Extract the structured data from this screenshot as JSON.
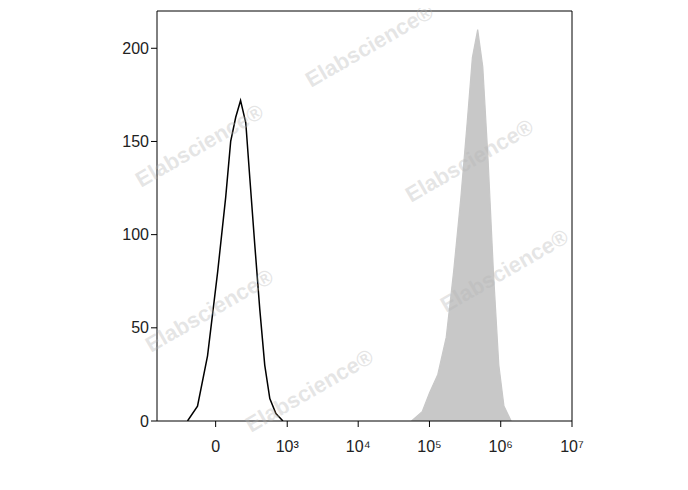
{
  "chart_data": {
    "type": "area",
    "log": "x",
    "watermark": "Elabscience®",
    "xlim": [
      -650,
      10000000
    ],
    "xticks": [
      0,
      {
        "value": 1000,
        "label": "10³"
      },
      {
        "value": 10000,
        "label": "10⁴"
      },
      {
        "value": 100000,
        "label": "10⁵"
      },
      {
        "value": 1000000,
        "label": "10⁶"
      },
      {
        "value": 10000000,
        "label": "10⁷"
      }
    ],
    "ylim": [
      0,
      220
    ],
    "yticks": [
      0,
      50,
      100,
      150,
      200
    ],
    "grid": false,
    "series": [
      {
        "type": "line",
        "color": "#000000",
        "x": [
          -208,
          -124,
          -53,
          13,
          66,
          101,
          139,
          179,
          227,
          269,
          325,
          392,
          468,
          558,
          686,
          868
        ],
        "values": [
          0,
          8,
          35,
          80,
          120,
          150,
          163,
          172,
          160,
          130,
          95,
          60,
          30,
          12,
          4,
          0
        ]
      },
      {
        "type": "area",
        "color": "#c8c8c8",
        "x": [
          56000,
          79000,
          100000,
          131000,
          172000,
          218000,
          276000,
          338000,
          400000,
          475000,
          560000,
          665000,
          790000,
          940000,
          1110000,
          1400000
        ],
        "values": [
          0,
          5,
          15,
          25,
          45,
          80,
          120,
          160,
          195,
          210,
          190,
          140,
          80,
          30,
          8,
          0
        ]
      }
    ]
  }
}
